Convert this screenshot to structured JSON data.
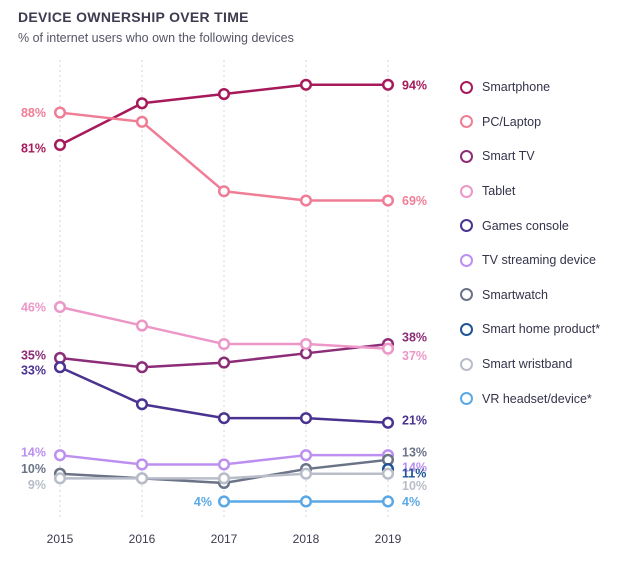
{
  "header": {
    "title": "DEVICE OWNERSHIP OVER TIME",
    "subtitle": "% of internet users who own the following devices"
  },
  "chart_data": {
    "type": "line",
    "title": "DEVICE OWNERSHIP OVER TIME",
    "subtitle": "% of internet users who own the following devices",
    "xlabel": "",
    "ylabel": "",
    "x": [
      "2015",
      "2016",
      "2017",
      "2018",
      "2019"
    ],
    "ylim": [
      0,
      100
    ],
    "grid": "vertical",
    "legend_position": "right",
    "series": [
      {
        "name": "Smartphone",
        "color": "#a6195a",
        "values": [
          81,
          90,
          92,
          94,
          94
        ],
        "start_label": "81%",
        "end_label": "94%"
      },
      {
        "name": "PC/Laptop",
        "color": "#f07d96",
        "values": [
          88,
          86,
          71,
          69,
          69
        ],
        "start_label": "88%",
        "end_label": "69%"
      },
      {
        "name": "Smart TV",
        "color": "#8c2d78",
        "values": [
          35,
          33,
          34,
          36,
          38
        ],
        "start_label": "35%",
        "end_label": "38%"
      },
      {
        "name": "Tablet",
        "color": "#ec97c8",
        "values": [
          46,
          42,
          38,
          38,
          37
        ],
        "start_label": "46%",
        "end_label": "37%"
      },
      {
        "name": "Games console",
        "color": "#4a3291",
        "values": [
          33,
          25,
          22,
          22,
          21
        ],
        "start_label": "33%",
        "end_label": "21%"
      },
      {
        "name": "TV streaming device",
        "color": "#bc8ff0",
        "values": [
          14,
          12,
          12,
          14,
          14
        ],
        "start_label": "14%",
        "end_label": "14%"
      },
      {
        "name": "Smartwatch",
        "color": "#6b7387",
        "values": [
          10,
          9,
          8,
          11,
          13
        ],
        "start_label": "10%",
        "end_label": "13%"
      },
      {
        "name": "Smart home product*",
        "color": "#1f5596",
        "values": [
          null,
          null,
          null,
          null,
          11
        ],
        "start_label": "",
        "end_label": "11%"
      },
      {
        "name": "Smart wristband",
        "color": "#b8bdc9",
        "values": [
          9,
          9,
          9,
          10,
          10
        ],
        "start_label": "9%",
        "end_label": "10%"
      },
      {
        "name": "VR headset/device*",
        "color": "#5aa9e6",
        "values": [
          null,
          null,
          4,
          4,
          4
        ],
        "start_label": "4%",
        "end_label": "4%"
      }
    ]
  }
}
